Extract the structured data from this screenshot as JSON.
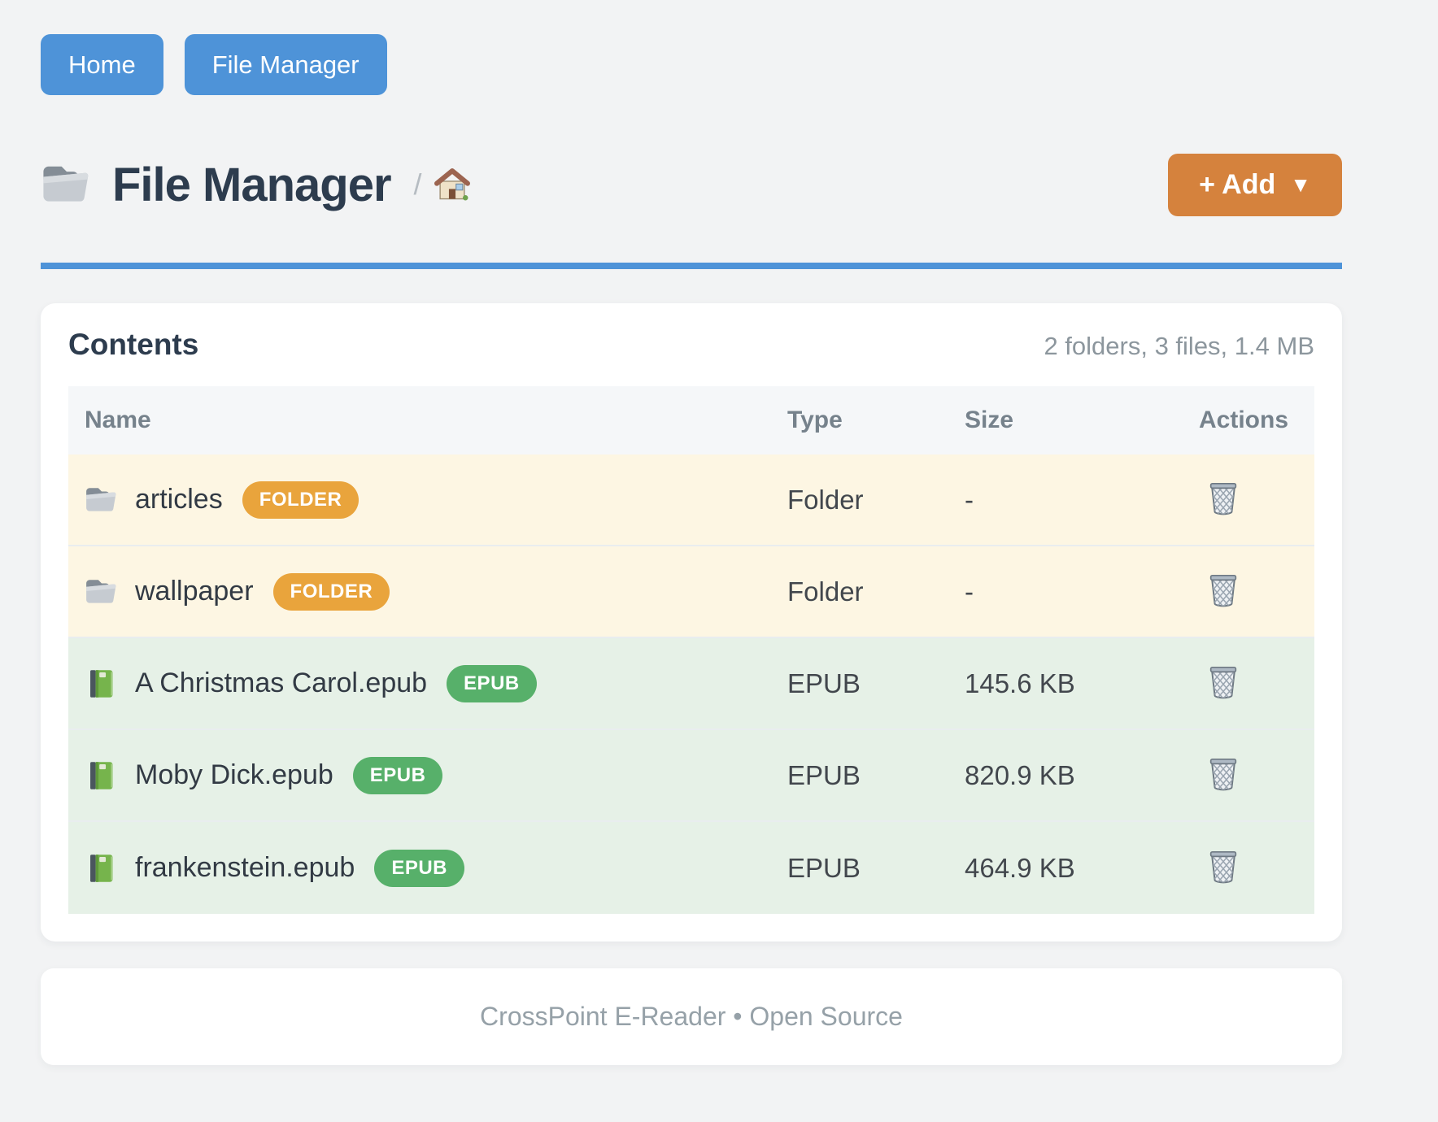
{
  "nav": {
    "home_label": "Home",
    "file_manager_label": "File Manager"
  },
  "header": {
    "title": "File Manager",
    "title_icon": "folder-icon",
    "breadcrumb_separator": "/",
    "breadcrumb_home_icon": "home-icon",
    "add_button_label": "+ Add",
    "add_button_caret": "▼"
  },
  "content_card": {
    "heading": "Contents",
    "summary": "2 folders, 3 files, 1.4 MB",
    "table": {
      "columns": [
        "Name",
        "Type",
        "Size",
        "Actions"
      ],
      "rows": [
        {
          "name": "articles",
          "badge": "FOLDER",
          "type": "Folder",
          "size": "-",
          "icon": "folder-icon",
          "kind": "folder",
          "action_icon": "trash-icon"
        },
        {
          "name": "wallpaper",
          "badge": "FOLDER",
          "type": "Folder",
          "size": "-",
          "icon": "folder-icon",
          "kind": "folder",
          "action_icon": "trash-icon"
        },
        {
          "name": "A Christmas Carol.epub",
          "badge": "EPUB",
          "type": "EPUB",
          "size": "145.6 KB",
          "icon": "book-icon",
          "kind": "epub",
          "action_icon": "trash-icon"
        },
        {
          "name": "Moby Dick.epub",
          "badge": "EPUB",
          "type": "EPUB",
          "size": "820.9 KB",
          "icon": "book-icon",
          "kind": "epub",
          "action_icon": "trash-icon"
        },
        {
          "name": "frankenstein.epub",
          "badge": "EPUB",
          "type": "EPUB",
          "size": "464.9 KB",
          "icon": "book-icon",
          "kind": "epub",
          "action_icon": "trash-icon"
        }
      ]
    }
  },
  "footer": {
    "text": "CrossPoint E-Reader • Open Source"
  },
  "colors": {
    "accent_blue": "#4e93d8",
    "accent_orange": "#d5823d",
    "badge_folder": "#e9a43c",
    "badge_epub": "#57b06a",
    "row_folder_bg": "#fdf6e3",
    "row_epub_bg": "#e6f1e7"
  }
}
